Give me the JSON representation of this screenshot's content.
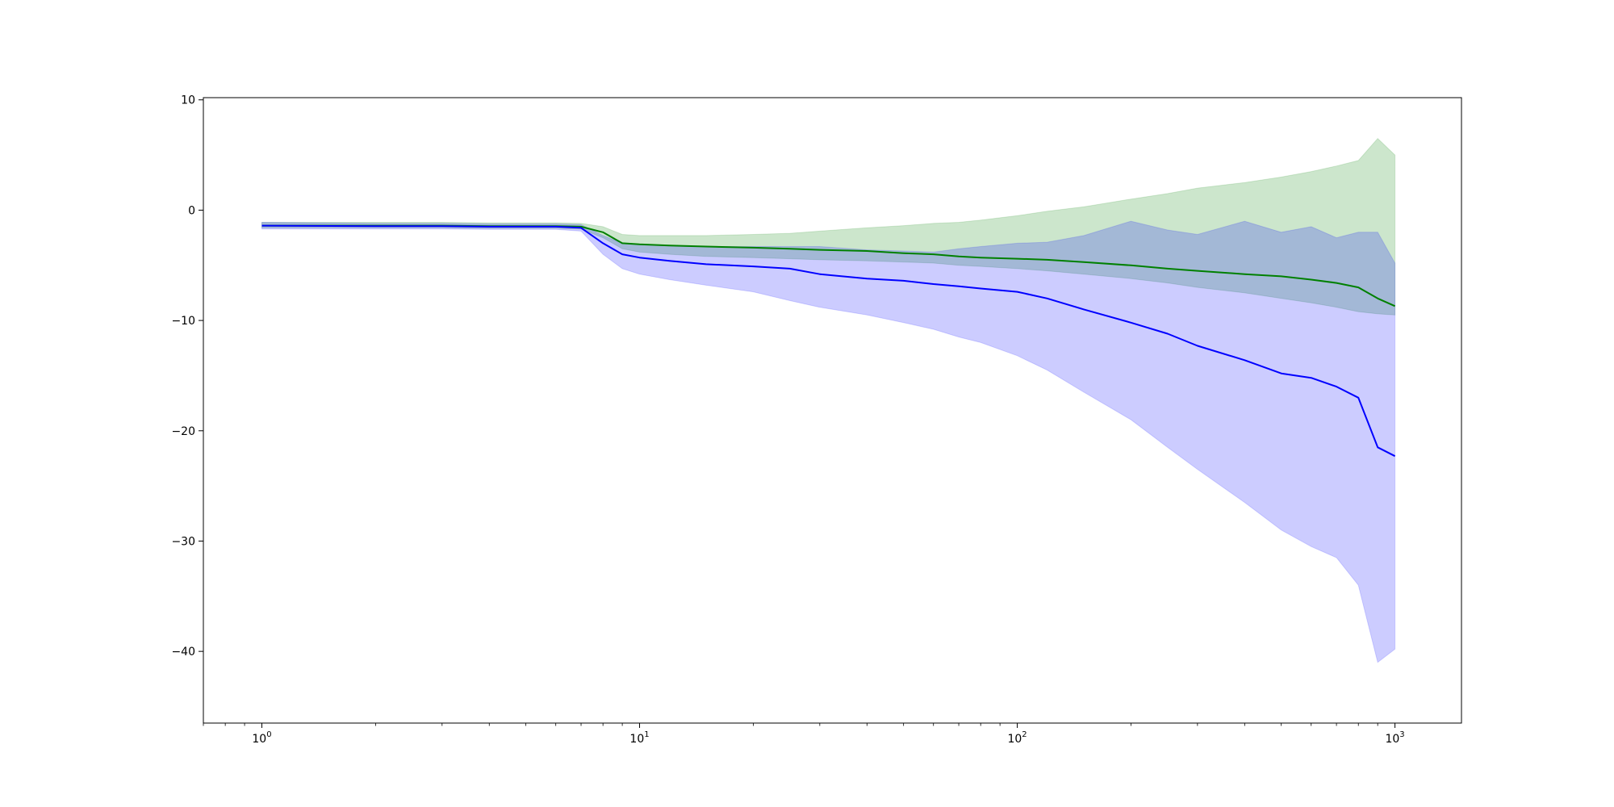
{
  "chart_data": {
    "type": "line",
    "title": "",
    "xlabel": "",
    "ylabel": "",
    "xscale": "log",
    "xlim": [
      0.7,
      1500
    ],
    "ylim": [
      -46.5,
      10.2
    ],
    "grid": false,
    "x_ticks": [
      {
        "value": 1,
        "base": "10",
        "exp": "0"
      },
      {
        "value": 10,
        "base": "10",
        "exp": "1"
      },
      {
        "value": 100,
        "base": "10",
        "exp": "2"
      },
      {
        "value": 1000,
        "base": "10",
        "exp": "3"
      }
    ],
    "y_ticks": [
      {
        "value": 10,
        "label": "10"
      },
      {
        "value": 0,
        "label": "0"
      },
      {
        "value": -10,
        "label": "−10"
      },
      {
        "value": -20,
        "label": "−20"
      },
      {
        "value": -30,
        "label": "−30"
      },
      {
        "value": -40,
        "label": "−40"
      }
    ],
    "series": [
      {
        "color": "#008000",
        "band_color": "#008000",
        "band_opacity": 0.2,
        "x": [
          1,
          2,
          3,
          4,
          5,
          6,
          7,
          8,
          9,
          10,
          12,
          15,
          20,
          25,
          30,
          40,
          50,
          60,
          70,
          80,
          100,
          120,
          150,
          200,
          250,
          300,
          400,
          500,
          600,
          700,
          800,
          900,
          1000
        ],
        "mean": [
          -1.4,
          -1.4,
          -1.4,
          -1.45,
          -1.45,
          -1.45,
          -1.5,
          -2.0,
          -3.0,
          -3.1,
          -3.2,
          -3.3,
          -3.4,
          -3.5,
          -3.6,
          -3.7,
          -3.9,
          -4.0,
          -4.2,
          -4.3,
          -4.4,
          -4.5,
          -4.7,
          -5.0,
          -5.3,
          -5.5,
          -5.8,
          -6.0,
          -6.3,
          -6.6,
          -7.0,
          -8.0,
          -8.7
        ],
        "lower": [
          -1.6,
          -1.6,
          -1.6,
          -1.65,
          -1.65,
          -1.65,
          -1.7,
          -2.5,
          -3.5,
          -3.8,
          -4.0,
          -4.2,
          -4.3,
          -4.4,
          -4.5,
          -4.6,
          -4.7,
          -4.8,
          -5.0,
          -5.1,
          -5.3,
          -5.5,
          -5.8,
          -6.2,
          -6.6,
          -7.0,
          -7.5,
          -8.0,
          -8.4,
          -8.8,
          -9.2,
          -9.4,
          -9.5
        ],
        "upper": [
          -1.1,
          -1.1,
          -1.1,
          -1.15,
          -1.15,
          -1.15,
          -1.2,
          -1.5,
          -2.2,
          -2.3,
          -2.3,
          -2.3,
          -2.2,
          -2.1,
          -1.9,
          -1.6,
          -1.4,
          -1.2,
          -1.1,
          -0.9,
          -0.5,
          -0.1,
          0.3,
          1.0,
          1.5,
          2.0,
          2.5,
          3.0,
          3.5,
          4.0,
          4.5,
          6.5,
          5.0
        ]
      },
      {
        "color": "#0000ff",
        "band_color": "#0000ff",
        "band_opacity": 0.2,
        "x": [
          1,
          2,
          3,
          4,
          5,
          6,
          7,
          8,
          9,
          10,
          12,
          15,
          20,
          25,
          30,
          40,
          50,
          60,
          70,
          80,
          100,
          120,
          150,
          200,
          250,
          300,
          400,
          500,
          600,
          700,
          800,
          900,
          1000
        ],
        "mean": [
          -1.4,
          -1.45,
          -1.45,
          -1.5,
          -1.5,
          -1.5,
          -1.6,
          -3.0,
          -4.0,
          -4.3,
          -4.6,
          -4.9,
          -5.1,
          -5.3,
          -5.8,
          -6.2,
          -6.4,
          -6.7,
          -6.9,
          -7.1,
          -7.4,
          -8.0,
          -9.0,
          -10.2,
          -11.2,
          -12.3,
          -13.6,
          -14.8,
          -15.2,
          -16.0,
          -17.0,
          -21.5,
          -22.3
        ],
        "lower": [
          -1.7,
          -1.7,
          -1.7,
          -1.75,
          -1.75,
          -1.75,
          -1.9,
          -4.0,
          -5.3,
          -5.8,
          -6.3,
          -6.8,
          -7.4,
          -8.2,
          -8.8,
          -9.5,
          -10.2,
          -10.8,
          -11.5,
          -12.0,
          -13.2,
          -14.5,
          -16.5,
          -19.0,
          -21.5,
          -23.5,
          -26.5,
          -29.0,
          -30.5,
          -31.5,
          -34.0,
          -41.0,
          -39.8
        ],
        "upper": [
          -1.1,
          -1.2,
          -1.2,
          -1.25,
          -1.25,
          -1.25,
          -1.3,
          -2.3,
          -3.0,
          -3.1,
          -3.2,
          -3.3,
          -3.3,
          -3.3,
          -3.3,
          -3.6,
          -3.7,
          -3.8,
          -3.5,
          -3.3,
          -3.0,
          -2.9,
          -2.3,
          -1.0,
          -1.8,
          -2.2,
          -1.0,
          -2.0,
          -1.5,
          -2.5,
          -2.0,
          -2.0,
          -4.8
        ]
      }
    ]
  }
}
